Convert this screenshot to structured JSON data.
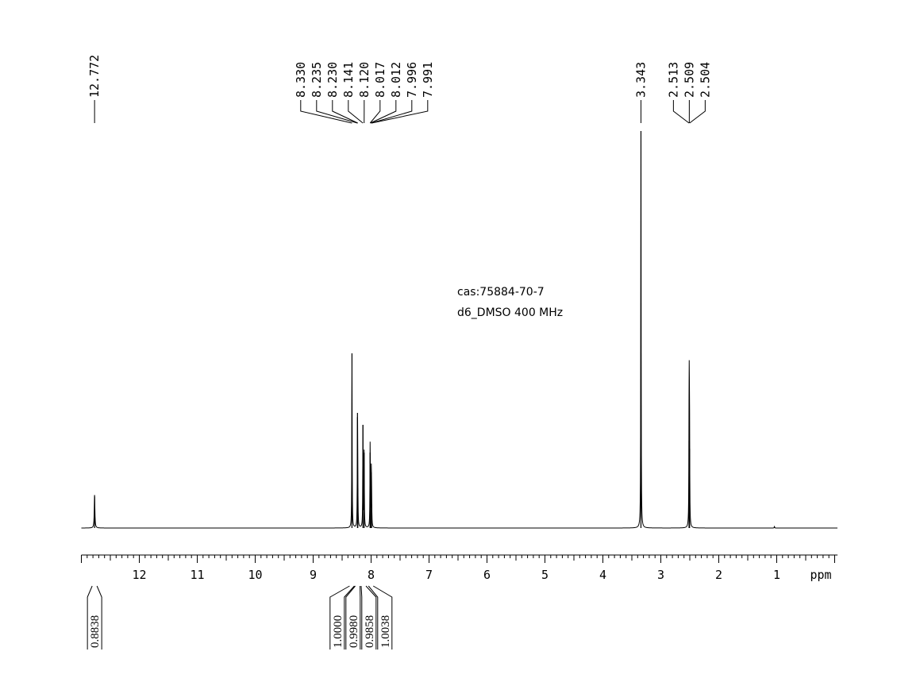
{
  "annotation": {
    "line1": "cas:75884-70-7",
    "line2": "d6_DMSO  400 MHz"
  },
  "chart_data": {
    "type": "line",
    "title": "",
    "xlabel": "ppm",
    "ylabel": "",
    "x_reversed": true,
    "xlim": [
      -0.05,
      13.0
    ],
    "ylim": [
      0,
      1.0
    ],
    "grid": false,
    "x_ticks": [
      12,
      11,
      10,
      9,
      8,
      7,
      6,
      5,
      4,
      3,
      2,
      1
    ],
    "x_tick_labels": [
      "12",
      "11",
      "10",
      "9",
      "8",
      "7",
      "6",
      "5",
      "4",
      "3",
      "2",
      "1"
    ],
    "peaks": [
      {
        "ppm": 12.772,
        "height": 0.083
      },
      {
        "ppm": 8.33,
        "height": 0.44
      },
      {
        "ppm": 8.235,
        "height": 0.29
      },
      {
        "ppm": 8.23,
        "height": 0.1
      },
      {
        "ppm": 8.141,
        "height": 0.26
      },
      {
        "ppm": 8.12,
        "height": 0.19
      },
      {
        "ppm": 8.017,
        "height": 0.19
      },
      {
        "ppm": 8.012,
        "height": 0.07
      },
      {
        "ppm": 7.996,
        "height": 0.14
      },
      {
        "ppm": 7.991,
        "height": 0.06
      },
      {
        "ppm": 3.343,
        "height": 1.0
      },
      {
        "ppm": 2.513,
        "height": 0.22
      },
      {
        "ppm": 2.509,
        "height": 0.27
      },
      {
        "ppm": 2.504,
        "height": 0.2
      },
      {
        "ppm": 1.04,
        "height": 0.004
      }
    ],
    "peak_labels": [
      {
        "group": "a",
        "ppm": 12.772,
        "text": "12.772"
      },
      {
        "group": "b",
        "ppm": 8.33,
        "text": "8.330"
      },
      {
        "group": "b",
        "ppm": 8.235,
        "text": "8.235"
      },
      {
        "group": "b",
        "ppm": 8.23,
        "text": "8.230"
      },
      {
        "group": "b",
        "ppm": 8.141,
        "text": "8.141"
      },
      {
        "group": "b",
        "ppm": 8.12,
        "text": "8.120"
      },
      {
        "group": "b",
        "ppm": 8.017,
        "text": "8.017"
      },
      {
        "group": "b",
        "ppm": 8.012,
        "text": "8.012"
      },
      {
        "group": "b",
        "ppm": 7.996,
        "text": "7.996"
      },
      {
        "group": "b",
        "ppm": 7.991,
        "text": "7.991"
      },
      {
        "group": "c",
        "ppm": 3.343,
        "text": "3.343"
      },
      {
        "group": "d",
        "ppm": 2.513,
        "text": "2.513"
      },
      {
        "group": "d",
        "ppm": 2.509,
        "text": "2.509"
      },
      {
        "group": "d",
        "ppm": 2.504,
        "text": "2.504"
      }
    ],
    "integrals": [
      {
        "ppm": 12.772,
        "value": "0.8838"
      },
      {
        "ppm": 8.33,
        "value": "1.0000"
      },
      {
        "ppm": 8.232,
        "value": "0.9980"
      },
      {
        "ppm": 8.13,
        "value": "0.9858"
      },
      {
        "ppm": 8.004,
        "value": "1.0038"
      }
    ]
  }
}
